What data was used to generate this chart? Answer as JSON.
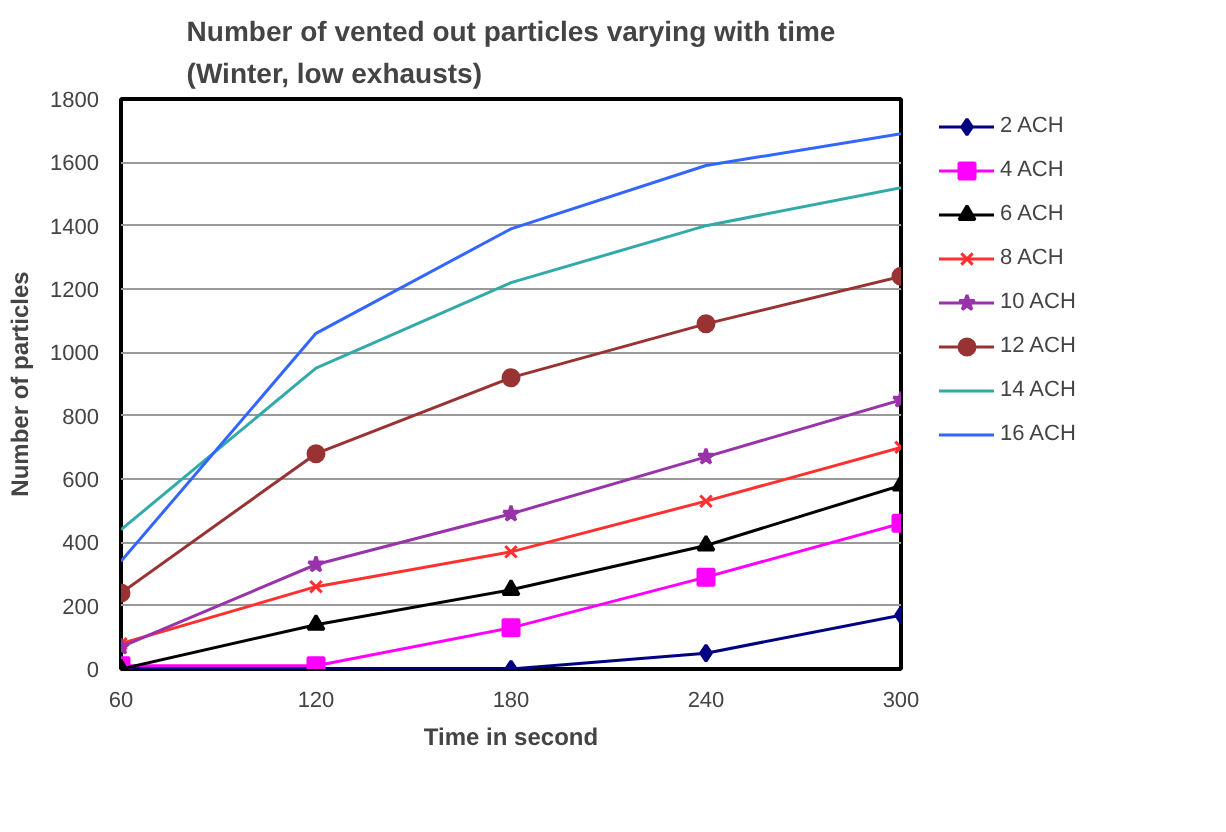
{
  "chart_data": {
    "type": "line",
    "title": "Number of vented out particles varying with time\n(Winter, low exhausts)",
    "xlabel": "Time in second",
    "ylabel": "Number of particles",
    "x": [
      60,
      120,
      180,
      240,
      300
    ],
    "xlim": [
      60,
      300
    ],
    "xticks": [
      60,
      120,
      180,
      240,
      300
    ],
    "ylim": [
      0,
      1800
    ],
    "yticks": [
      0,
      200,
      400,
      600,
      800,
      1000,
      1200,
      1400,
      1600,
      1800
    ],
    "grid": "y",
    "legend": "right",
    "series": [
      {
        "name": "2 ACH",
        "color": "#000080",
        "marker": "diamond",
        "values": [
          0,
          0,
          0,
          50,
          170
        ]
      },
      {
        "name": "4 ACH",
        "color": "#ff00ff",
        "marker": "square",
        "values": [
          10,
          10,
          130,
          290,
          460
        ]
      },
      {
        "name": "6 ACH",
        "color": "#000000",
        "marker": "triangle",
        "values": [
          0,
          140,
          250,
          390,
          580
        ]
      },
      {
        "name": "8 ACH",
        "color": "#ff3030",
        "marker": "cross",
        "values": [
          80,
          260,
          370,
          530,
          700
        ]
      },
      {
        "name": "10 ACH",
        "color": "#9933aa",
        "marker": "star",
        "values": [
          70,
          330,
          490,
          670,
          850
        ]
      },
      {
        "name": "12 ACH",
        "color": "#993333",
        "marker": "circle",
        "values": [
          240,
          680,
          920,
          1090,
          1240
        ]
      },
      {
        "name": "14 ACH",
        "color": "#33aaaa",
        "marker": "none",
        "values": [
          440,
          950,
          1220,
          1400,
          1520
        ]
      },
      {
        "name": "16 ACH",
        "color": "#3366ff",
        "marker": "none",
        "values": [
          340,
          1060,
          1390,
          1590,
          1690
        ]
      }
    ]
  }
}
